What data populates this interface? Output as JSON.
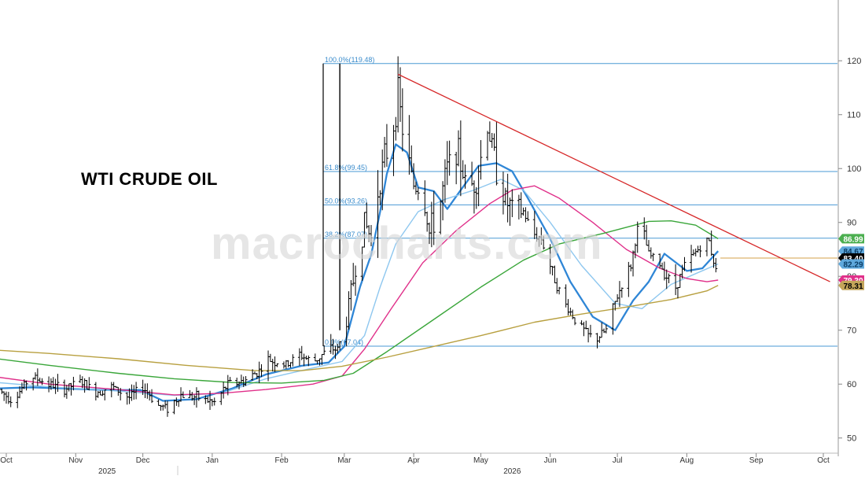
{
  "header": {
    "title": "WTI CRUDE OIL"
  },
  "watermark": "macrocharts.com",
  "chart_data": {
    "type": "ohlc",
    "title": "WTI CRUDE OIL",
    "xlabel": "",
    "ylabel": "",
    "ylim": [
      48.5,
      125
    ],
    "y_ticks": [
      50,
      60,
      70,
      80,
      90,
      100,
      110,
      120
    ],
    "x_ticks": [
      {
        "label": "Oct",
        "date": "2025-10-01"
      },
      {
        "label": "Nov",
        "date": "2025-11-01"
      },
      {
        "label": "Dec",
        "date": "2025-12-01"
      },
      {
        "label": "Jan",
        "date": "2026-01-01"
      },
      {
        "label": "Feb",
        "date": "2026-02-01"
      },
      {
        "label": "Mar",
        "date": "2026-03-01"
      },
      {
        "label": "Apr",
        "date": "2026-04-01"
      },
      {
        "label": "May",
        "date": "2026-05-01"
      },
      {
        "label": "Jun",
        "date": "2026-06-01"
      },
      {
        "label": "Jul",
        "date": "2026-07-01"
      },
      {
        "label": "Aug",
        "date": "2026-08-01"
      },
      {
        "label": "Sep",
        "date": "2026-09-01"
      },
      {
        "label": "Oct",
        "date": "2026-10-01"
      }
    ],
    "year_labels": [
      {
        "label": "2025",
        "date": "2025-11-15"
      },
      {
        "label": "2026",
        "date": "2026-05-15"
      }
    ],
    "fibonacci": [
      {
        "label": "100.0%(119.48)",
        "value": 119.48
      },
      {
        "label": "61.8%(99.45)",
        "value": 99.45
      },
      {
        "label": "50.0%(93.26)",
        "value": 93.26
      },
      {
        "label": "38.2%(87.07)",
        "value": 87.07
      },
      {
        "label": "0.0%(67.04)",
        "value": 67.04
      }
    ],
    "last_price_line": 83.4,
    "price_tags": [
      {
        "label": "86.99",
        "value": 86.99,
        "bg": "#4caf50",
        "fg": "#ffffff"
      },
      {
        "label": "84.67",
        "value": 84.67,
        "bg": "#5fa8dc",
        "fg": "#0a3d66"
      },
      {
        "label": "83.40",
        "value": 83.4,
        "bg": "#000000",
        "fg": "#ffffff"
      },
      {
        "label": "82.29",
        "value": 82.29,
        "bg": "#5fa8dc",
        "fg": "#0a3d66"
      },
      {
        "label": "79.30",
        "value": 79.3,
        "bg": "#e0308a",
        "fg": "#ffffff"
      },
      {
        "label": "78.31",
        "value": 78.31,
        "bg": "#c4a55a",
        "fg": "#000000"
      }
    ],
    "trendline": {
      "color": "#d62728",
      "points": [
        {
          "date": "2026-03-25",
          "value": 117.5
        },
        {
          "date": "2026-10-04",
          "value": 79.0
        }
      ]
    },
    "series": [
      {
        "name": "",
        "kind": "moving-average",
        "color": "#2f86d6",
        "width": 2.3,
        "points": [
          [
            "2025-09-27",
            59.2
          ],
          [
            "2025-10-12",
            59.4
          ],
          [
            "2025-10-27",
            59.2
          ],
          [
            "2025-11-14",
            58.9
          ],
          [
            "2025-11-30",
            58.9
          ],
          [
            "2025-12-10",
            56.9
          ],
          [
            "2025-12-25",
            57.2
          ],
          [
            "2026-01-10",
            59.2
          ],
          [
            "2026-01-25",
            61.8
          ],
          [
            "2026-02-10",
            63.4
          ],
          [
            "2026-02-22",
            64.0
          ],
          [
            "2026-03-01",
            67.0
          ],
          [
            "2026-03-08",
            78.0
          ],
          [
            "2026-03-13",
            84.0
          ],
          [
            "2026-03-17",
            92.0
          ],
          [
            "2026-03-20",
            99.0
          ],
          [
            "2026-03-24",
            104.5
          ],
          [
            "2026-03-29",
            103.0
          ],
          [
            "2026-04-03",
            96.5
          ],
          [
            "2026-04-10",
            95.8
          ],
          [
            "2026-04-16",
            92.5
          ],
          [
            "2026-04-22",
            96.0
          ],
          [
            "2026-04-30",
            100.5
          ],
          [
            "2026-05-08",
            101.0
          ],
          [
            "2026-05-15",
            99.5
          ],
          [
            "2026-05-22",
            94.5
          ],
          [
            "2026-06-01",
            87.0
          ],
          [
            "2026-06-10",
            79.0
          ],
          [
            "2026-06-20",
            72.5
          ],
          [
            "2026-06-30",
            70.0
          ],
          [
            "2026-07-08",
            75.5
          ],
          [
            "2026-07-15",
            79.0
          ],
          [
            "2026-07-22",
            84.2
          ],
          [
            "2026-08-01",
            81.0
          ],
          [
            "2026-08-08",
            81.5
          ],
          [
            "2026-08-15",
            84.67
          ]
        ]
      },
      {
        "name": "",
        "kind": "moving-average",
        "color": "#8ec7ef",
        "width": 1.4,
        "points": [
          [
            "2025-09-27",
            60.3
          ],
          [
            "2025-10-20",
            59.5
          ],
          [
            "2025-11-20",
            58.7
          ],
          [
            "2025-12-15",
            57.9
          ],
          [
            "2026-01-05",
            58.3
          ],
          [
            "2026-01-25",
            61.0
          ],
          [
            "2026-02-15",
            63.0
          ],
          [
            "2026-02-28",
            64.2
          ],
          [
            "2026-03-10",
            69.0
          ],
          [
            "2026-03-17",
            78.0
          ],
          [
            "2026-03-24",
            86.0
          ],
          [
            "2026-04-03",
            92.0
          ],
          [
            "2026-04-15",
            94.3
          ],
          [
            "2026-04-28",
            96.0
          ],
          [
            "2026-05-10",
            98.0
          ],
          [
            "2026-05-20",
            96.0
          ],
          [
            "2026-06-01",
            90.0
          ],
          [
            "2026-06-15",
            82.0
          ],
          [
            "2026-06-30",
            75.0
          ],
          [
            "2026-07-12",
            74.0
          ],
          [
            "2026-07-25",
            78.5
          ],
          [
            "2026-08-05",
            80.5
          ],
          [
            "2026-08-15",
            82.29
          ]
        ]
      },
      {
        "name": "",
        "kind": "moving-average",
        "color": "#e0308a",
        "width": 1.4,
        "points": [
          [
            "2025-09-27",
            61.3
          ],
          [
            "2025-10-20",
            60.0
          ],
          [
            "2025-11-20",
            59.0
          ],
          [
            "2025-12-15",
            58.0
          ],
          [
            "2026-01-05",
            58.3
          ],
          [
            "2026-01-25",
            59.0
          ],
          [
            "2026-02-15",
            60.0
          ],
          [
            "2026-02-28",
            61.5
          ],
          [
            "2026-03-10",
            66.5
          ],
          [
            "2026-03-22",
            74.0
          ],
          [
            "2026-04-05",
            82.5
          ],
          [
            "2026-04-20",
            88.5
          ],
          [
            "2026-05-05",
            93.5
          ],
          [
            "2026-05-15",
            96.0
          ],
          [
            "2026-05-25",
            96.8
          ],
          [
            "2026-06-05",
            94.5
          ],
          [
            "2026-06-20",
            90.0
          ],
          [
            "2026-07-05",
            85.0
          ],
          [
            "2026-07-20",
            81.5
          ],
          [
            "2026-08-01",
            79.6
          ],
          [
            "2026-08-10",
            79.0
          ],
          [
            "2026-08-15",
            79.3
          ]
        ]
      },
      {
        "name": "",
        "kind": "moving-average",
        "color": "#3aa63a",
        "width": 1.4,
        "points": [
          [
            "2025-09-27",
            64.7
          ],
          [
            "2025-10-20",
            63.5
          ],
          [
            "2025-11-20",
            62.0
          ],
          [
            "2025-12-15",
            61.0
          ],
          [
            "2026-01-10",
            60.3
          ],
          [
            "2026-02-01",
            60.2
          ],
          [
            "2026-02-20",
            60.7
          ],
          [
            "2026-03-05",
            62.0
          ],
          [
            "2026-03-20",
            66.0
          ],
          [
            "2026-04-10",
            72.0
          ],
          [
            "2026-05-01",
            78.0
          ],
          [
            "2026-05-20",
            83.0
          ],
          [
            "2026-06-05",
            86.0
          ],
          [
            "2026-06-25",
            88.0
          ],
          [
            "2026-07-15",
            90.2
          ],
          [
            "2026-07-25",
            90.3
          ],
          [
            "2026-08-05",
            89.5
          ],
          [
            "2026-08-15",
            86.99
          ]
        ]
      },
      {
        "name": "",
        "kind": "moving-average",
        "color": "#b8a040",
        "width": 1.4,
        "points": [
          [
            "2025-09-27",
            66.3
          ],
          [
            "2025-10-20",
            65.7
          ],
          [
            "2025-11-20",
            64.7
          ],
          [
            "2025-12-20",
            63.5
          ],
          [
            "2026-01-20",
            62.5
          ],
          [
            "2026-02-10",
            62.5
          ],
          [
            "2026-02-28",
            63.3
          ],
          [
            "2026-03-20",
            65.0
          ],
          [
            "2026-04-10",
            67.0
          ],
          [
            "2026-05-01",
            69.0
          ],
          [
            "2026-05-25",
            71.5
          ],
          [
            "2026-06-15",
            73.0
          ],
          [
            "2026-07-05",
            74.3
          ],
          [
            "2026-07-25",
            75.7
          ],
          [
            "2026-08-10",
            77.3
          ],
          [
            "2026-08-15",
            78.31
          ]
        ]
      }
    ],
    "price_path": [
      [
        "2025-09-27",
        59.0
      ],
      [
        "2025-10-04",
        57.0
      ],
      [
        "2025-10-12",
        61.5
      ],
      [
        "2025-10-20",
        60.0
      ],
      [
        "2025-10-27",
        59.0
      ],
      [
        "2025-11-03",
        60.5
      ],
      [
        "2025-11-10",
        58.5
      ],
      [
        "2025-11-17",
        59.5
      ],
      [
        "2025-11-25",
        57.5
      ],
      [
        "2025-12-01",
        59.5
      ],
      [
        "2025-12-08",
        56.0
      ],
      [
        "2025-12-12",
        55.5
      ],
      [
        "2025-12-18",
        58.0
      ],
      [
        "2025-12-26",
        57.5
      ],
      [
        "2026-01-02",
        56.5
      ],
      [
        "2026-01-08",
        60.0
      ],
      [
        "2026-01-15",
        60.5
      ],
      [
        "2026-01-22",
        62.5
      ],
      [
        "2026-01-26",
        64.5
      ],
      [
        "2026-02-03",
        63.5
      ],
      [
        "2026-02-09",
        65.5
      ],
      [
        "2026-02-15",
        64.0
      ],
      [
        "2026-02-22",
        66.5
      ],
      [
        "2026-02-26",
        66.5
      ],
      [
        "2026-03-01",
        70.0
      ],
      [
        "2026-03-04",
        77.0
      ],
      [
        "2026-03-08",
        86.0
      ],
      [
        "2026-03-10",
        90.0
      ],
      [
        "2026-03-13",
        87.0
      ],
      [
        "2026-03-16",
        96.0
      ],
      [
        "2026-03-19",
        102.0
      ],
      [
        "2026-03-22",
        105.0
      ],
      [
        "2026-03-25",
        114.0
      ],
      [
        "2026-03-28",
        104.0
      ],
      [
        "2026-04-01",
        97.0
      ],
      [
        "2026-04-05",
        96.0
      ],
      [
        "2026-04-08",
        88.0
      ],
      [
        "2026-04-12",
        92.0
      ],
      [
        "2026-04-16",
        100.0
      ],
      [
        "2026-04-20",
        104.0
      ],
      [
        "2026-04-25",
        96.0
      ],
      [
        "2026-04-29",
        98.0
      ],
      [
        "2026-05-04",
        108.0
      ],
      [
        "2026-05-08",
        100.0
      ],
      [
        "2026-05-12",
        94.0
      ],
      [
        "2026-05-16",
        92.0
      ],
      [
        "2026-05-20",
        92.0
      ],
      [
        "2026-05-24",
        88.0
      ],
      [
        "2026-05-28",
        87.0
      ],
      [
        "2026-06-01",
        82.0
      ],
      [
        "2026-06-06",
        76.0
      ],
      [
        "2026-06-12",
        72.0
      ],
      [
        "2026-06-18",
        69.0
      ],
      [
        "2026-06-22",
        68.5
      ],
      [
        "2026-06-26",
        70.0
      ],
      [
        "2026-06-29",
        74.0
      ],
      [
        "2026-07-03",
        78.5
      ],
      [
        "2026-07-07",
        82.0
      ],
      [
        "2026-07-11",
        91.0
      ],
      [
        "2026-07-15",
        84.0
      ],
      [
        "2026-07-19",
        83.0
      ],
      [
        "2026-07-23",
        80.0
      ],
      [
        "2026-07-27",
        78.0
      ],
      [
        "2026-07-31",
        82.0
      ],
      [
        "2026-08-04",
        84.0
      ],
      [
        "2026-08-08",
        86.0
      ],
      [
        "2026-08-11",
        86.5
      ],
      [
        "2026-08-14",
        81.0
      ],
      [
        "2026-08-16",
        83.4
      ]
    ]
  }
}
